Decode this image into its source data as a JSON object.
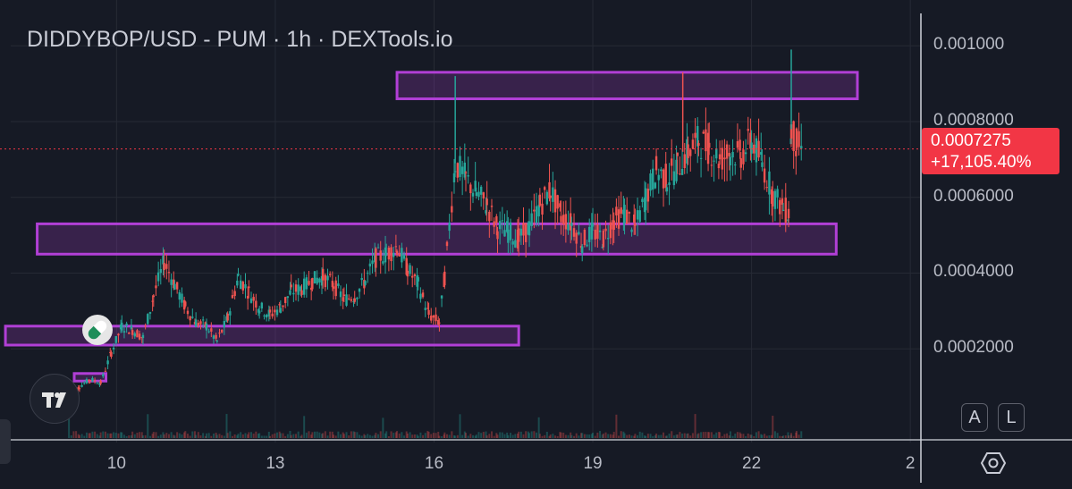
{
  "header": {
    "title": "DIDDYBOP/USD - PUM · 1h · DEXTools.io"
  },
  "price_label": {
    "value": "0.0007275",
    "change": "+17,105.40%",
    "color": "#f23645"
  },
  "buttons": {
    "auto": "A",
    "log": "L"
  },
  "colors": {
    "up": "#26a69a",
    "down": "#ef5350",
    "zone": "#b13fd6",
    "background": "#161a25"
  },
  "icons": [
    "tradingview-logo-icon",
    "pill-icon",
    "settings-icon"
  ],
  "chart_data": {
    "type": "candlestick",
    "title": "DIDDYBOP/USD - PUM · 1h · DEXTools.io",
    "xlabel": "",
    "ylabel": "",
    "ylim": [
      0,
      0.00105
    ],
    "y_ticks": [
      "0.001000",
      "0.0008000",
      "0.0006000",
      "0.0004000",
      "0.0002000"
    ],
    "y_tick_values": [
      0.001,
      0.0008,
      0.0006,
      0.0004,
      0.0002
    ],
    "x_ticks": [
      "10",
      "13",
      "16",
      "19",
      "22",
      "2"
    ],
    "x_tick_days": [
      10,
      13,
      16,
      19,
      22,
      25
    ],
    "xlim_days": [
      8.0,
      25.2
    ],
    "last_price": 0.0007275,
    "grid": true,
    "series_close": [
      [
        9.1,
        7e-05
      ],
      [
        9.3,
        0.0001
      ],
      [
        9.5,
        0.00012
      ],
      [
        9.7,
        0.00011
      ],
      [
        9.9,
        0.00019
      ],
      [
        10.1,
        0.00026
      ],
      [
        10.3,
        0.00025
      ],
      [
        10.5,
        0.00023
      ],
      [
        10.7,
        0.00034
      ],
      [
        10.9,
        0.00043
      ],
      [
        11.1,
        0.00037
      ],
      [
        11.3,
        0.00031
      ],
      [
        11.5,
        0.00027
      ],
      [
        11.7,
        0.00026
      ],
      [
        11.9,
        0.00022
      ],
      [
        12.1,
        0.00028
      ],
      [
        12.3,
        0.00039
      ],
      [
        12.5,
        0.00035
      ],
      [
        12.7,
        0.00031
      ],
      [
        12.9,
        0.00029
      ],
      [
        13.1,
        0.00031
      ],
      [
        13.3,
        0.00035
      ],
      [
        13.5,
        0.00036
      ],
      [
        13.7,
        0.00038
      ],
      [
        13.9,
        0.00039
      ],
      [
        14.1,
        0.00037
      ],
      [
        14.3,
        0.00033
      ],
      [
        14.5,
        0.00034
      ],
      [
        14.7,
        0.00038
      ],
      [
        14.9,
        0.00044
      ],
      [
        15.1,
        0.00045
      ],
      [
        15.3,
        0.00047
      ],
      [
        15.5,
        0.00041
      ],
      [
        15.7,
        0.00037
      ],
      [
        15.9,
        0.00029
      ],
      [
        16.1,
        0.00027
      ],
      [
        16.2,
        0.00039
      ],
      [
        16.4,
        0.00069
      ],
      [
        16.6,
        0.00065
      ],
      [
        16.8,
        0.00061
      ],
      [
        17.0,
        0.00058
      ],
      [
        17.2,
        0.00052
      ],
      [
        17.4,
        0.00051
      ],
      [
        17.6,
        0.00049
      ],
      [
        17.8,
        0.00052
      ],
      [
        18.0,
        0.00058
      ],
      [
        18.2,
        0.00062
      ],
      [
        18.4,
        0.00055
      ],
      [
        18.6,
        0.00053
      ],
      [
        18.8,
        0.00048
      ],
      [
        19.0,
        0.00051
      ],
      [
        19.2,
        0.00049
      ],
      [
        19.4,
        0.00054
      ],
      [
        19.6,
        0.00056
      ],
      [
        19.8,
        0.00052
      ],
      [
        20.0,
        0.0006
      ],
      [
        20.2,
        0.00067
      ],
      [
        20.4,
        0.00065
      ],
      [
        20.6,
        0.00068
      ],
      [
        20.8,
        0.00072
      ],
      [
        21.0,
        0.00075
      ],
      [
        21.2,
        0.00073
      ],
      [
        21.4,
        0.0007
      ],
      [
        21.6,
        0.00072
      ],
      [
        21.8,
        0.00071
      ],
      [
        22.0,
        0.00075
      ],
      [
        22.2,
        0.00069
      ],
      [
        22.4,
        0.00061
      ],
      [
        22.6,
        0.00057
      ],
      [
        22.7,
        0.00056
      ],
      [
        22.75,
        0.00078
      ],
      [
        22.85,
        0.00074
      ],
      [
        22.95,
        0.0007275
      ]
    ],
    "spikes": [
      {
        "day": 16.4,
        "high": 0.00092,
        "color": "up"
      },
      {
        "day": 20.7,
        "high": 0.00093,
        "color": "down"
      },
      {
        "day": 22.75,
        "high": 0.00099,
        "color": "up"
      }
    ],
    "zones": [
      {
        "day_from": 15.3,
        "day_to": 24.0,
        "low": 0.00086,
        "high": 0.00093
      },
      {
        "day_from": 8.5,
        "day_to": 23.6,
        "low": 0.00045,
        "high": 0.00053
      },
      {
        "day_from": 7.9,
        "day_to": 17.6,
        "low": 0.00021,
        "high": 0.00026
      },
      {
        "day_from": 9.2,
        "day_to": 9.8,
        "low": 0.000115,
        "high": 0.000135
      }
    ]
  }
}
